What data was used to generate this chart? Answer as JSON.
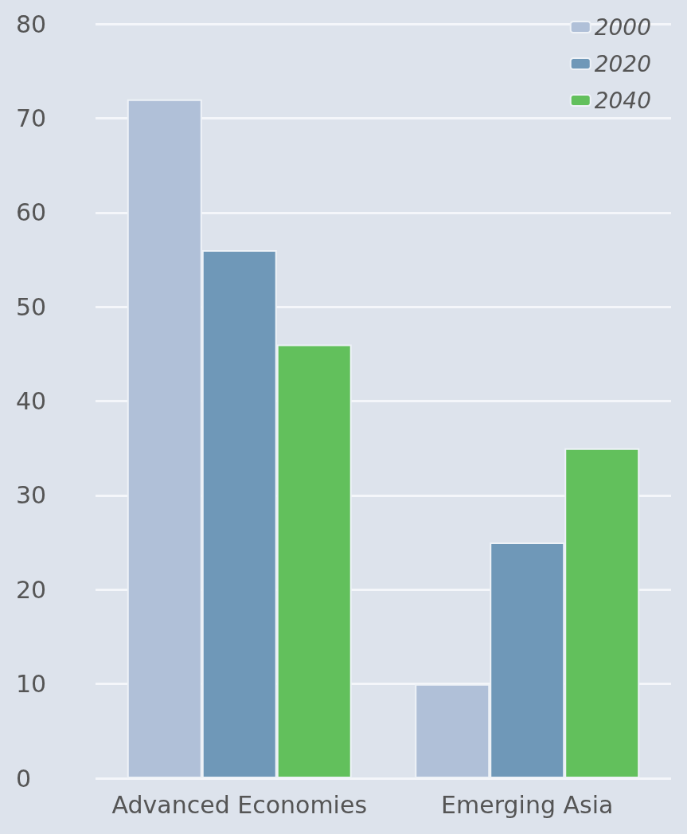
{
  "chart_data": {
    "type": "bar",
    "categories": [
      "Advanced Economies",
      "Emerging Asia"
    ],
    "series": [
      {
        "name": "2000",
        "color": "#b0c0d8",
        "values": [
          72,
          10
        ]
      },
      {
        "name": "2020",
        "color": "#6f98b8",
        "values": [
          56,
          25
        ]
      },
      {
        "name": "2040",
        "color": "#62c05c",
        "values": [
          46,
          35
        ]
      }
    ],
    "ylim": [
      0,
      80
    ],
    "yticks": [
      0,
      10,
      20,
      30,
      40,
      50,
      60,
      70,
      80
    ],
    "grid": "y",
    "legend": "top right"
  }
}
